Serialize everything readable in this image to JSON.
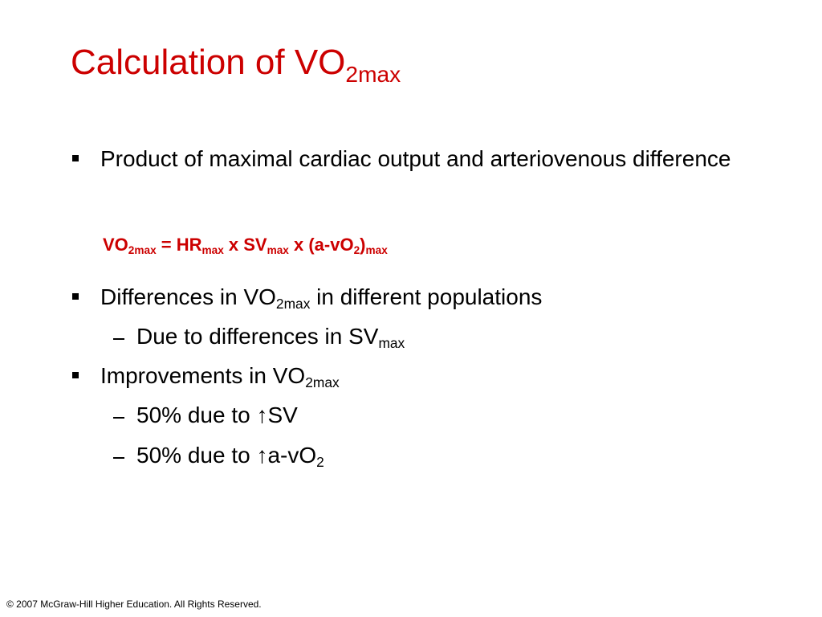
{
  "title": [
    {
      "text": "Calculation of VO"
    },
    {
      "sub": "2max"
    }
  ],
  "items": [
    {
      "level": 1,
      "runs": [
        {
          "text": "Product of maximal cardiac output and arteriovenous difference"
        }
      ]
    },
    {
      "level": 0,
      "runs": [
        {
          "text": "VO"
        },
        {
          "sub": "2max"
        },
        {
          "text": " = HR"
        },
        {
          "sub": "max"
        },
        {
          "text": " x SV"
        },
        {
          "sub": "max"
        },
        {
          "text": " x (a-vO"
        },
        {
          "sub": "2"
        },
        {
          "text": ")"
        },
        {
          "sub": "max"
        }
      ]
    },
    {
      "level": 1,
      "runs": [
        {
          "text": "Differences in VO"
        },
        {
          "sub": "2max"
        },
        {
          "text": " in different populations"
        }
      ]
    },
    {
      "level": 2,
      "runs": [
        {
          "text": "Due to differences in SV"
        },
        {
          "sub": "max"
        }
      ]
    },
    {
      "level": 1,
      "runs": [
        {
          "text": "Improvements in VO"
        },
        {
          "sub": "2max"
        }
      ]
    },
    {
      "level": 2,
      "runs": [
        {
          "text": "50% due to ↑SV"
        }
      ]
    },
    {
      "level": 2,
      "runs": [
        {
          "text": "50% due to ↑a-vO"
        },
        {
          "sub": "2"
        }
      ]
    }
  ],
  "footer": "© 2007 McGraw-Hill Higher Education. All Rights Reserved."
}
